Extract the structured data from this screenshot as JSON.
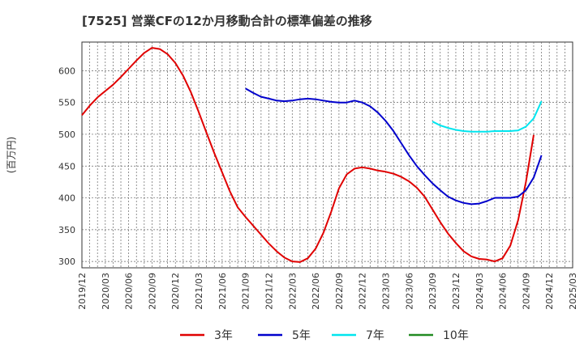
{
  "chart_data": {
    "type": "line",
    "title": "[7525]  営業CFの12か月移動合計の標準偏差の推移",
    "ylabel": "(百万円)",
    "xlabel": "",
    "ylim": [
      290,
      645
    ],
    "yticks": [
      300,
      350,
      400,
      450,
      500,
      550,
      600
    ],
    "xticks": [
      "2019/12",
      "2020/03",
      "2020/06",
      "2020/09",
      "2020/12",
      "2021/03",
      "2021/06",
      "2021/09",
      "2021/12",
      "2022/03",
      "2022/06",
      "2022/09",
      "2022/12",
      "2023/03",
      "2023/06",
      "2023/09",
      "2023/12",
      "2024/03",
      "2024/06",
      "2024/09",
      "2024/12",
      "2025/03"
    ],
    "grid": true,
    "legend_position": "bottom",
    "series": [
      {
        "name": "3年",
        "color": "#e00000",
        "points": [
          [
            "2019/12",
            530
          ],
          [
            "2020/01",
            545
          ],
          [
            "2020/02",
            558
          ],
          [
            "2020/03",
            568
          ],
          [
            "2020/04",
            578
          ],
          [
            "2020/05",
            590
          ],
          [
            "2020/06",
            603
          ],
          [
            "2020/07",
            616
          ],
          [
            "2020/08",
            628
          ],
          [
            "2020/09",
            636
          ],
          [
            "2020/10",
            634
          ],
          [
            "2020/11",
            626
          ],
          [
            "2020/12",
            612
          ],
          [
            "2021/01",
            592
          ],
          [
            "2021/02",
            566
          ],
          [
            "2021/03",
            535
          ],
          [
            "2021/04",
            502
          ],
          [
            "2021/05",
            470
          ],
          [
            "2021/06",
            440
          ],
          [
            "2021/07",
            410
          ],
          [
            "2021/08",
            385
          ],
          [
            "2021/09",
            370
          ],
          [
            "2021/10",
            356
          ],
          [
            "2021/11",
            342
          ],
          [
            "2021/12",
            328
          ],
          [
            "2022/01",
            316
          ],
          [
            "2022/02",
            306
          ],
          [
            "2022/03",
            300
          ],
          [
            "2022/04",
            299
          ],
          [
            "2022/05",
            305
          ],
          [
            "2022/06",
            320
          ],
          [
            "2022/07",
            345
          ],
          [
            "2022/08",
            378
          ],
          [
            "2022/09",
            415
          ],
          [
            "2022/10",
            437
          ],
          [
            "2022/11",
            446
          ],
          [
            "2022/12",
            448
          ],
          [
            "2023/01",
            446
          ],
          [
            "2023/02",
            443
          ],
          [
            "2023/03",
            441
          ],
          [
            "2023/04",
            438
          ],
          [
            "2023/05",
            433
          ],
          [
            "2023/06",
            426
          ],
          [
            "2023/07",
            416
          ],
          [
            "2023/08",
            402
          ],
          [
            "2023/09",
            382
          ],
          [
            "2023/10",
            362
          ],
          [
            "2023/11",
            344
          ],
          [
            "2023/12",
            329
          ],
          [
            "2024/01",
            316
          ],
          [
            "2024/02",
            308
          ],
          [
            "2024/03",
            304
          ],
          [
            "2024/04",
            303
          ],
          [
            "2024/05",
            300
          ],
          [
            "2024/06",
            305
          ],
          [
            "2024/07",
            325
          ],
          [
            "2024/08",
            365
          ],
          [
            "2024/09",
            425
          ],
          [
            "2024/10",
            499
          ]
        ]
      },
      {
        "name": "5年",
        "color": "#0000cc",
        "points": [
          [
            "2021/09",
            572
          ],
          [
            "2021/10",
            565
          ],
          [
            "2021/11",
            559
          ],
          [
            "2021/12",
            556
          ],
          [
            "2022/01",
            553
          ],
          [
            "2022/02",
            552
          ],
          [
            "2022/03",
            553
          ],
          [
            "2022/04",
            555
          ],
          [
            "2022/05",
            556
          ],
          [
            "2022/06",
            555
          ],
          [
            "2022/07",
            553
          ],
          [
            "2022/08",
            551
          ],
          [
            "2022/09",
            550
          ],
          [
            "2022/10",
            550
          ],
          [
            "2022/11",
            553
          ],
          [
            "2022/12",
            550
          ],
          [
            "2023/01",
            544
          ],
          [
            "2023/02",
            534
          ],
          [
            "2023/03",
            521
          ],
          [
            "2023/04",
            505
          ],
          [
            "2023/05",
            486
          ],
          [
            "2023/06",
            467
          ],
          [
            "2023/07",
            450
          ],
          [
            "2023/08",
            436
          ],
          [
            "2023/09",
            423
          ],
          [
            "2023/10",
            412
          ],
          [
            "2023/11",
            402
          ],
          [
            "2023/12",
            396
          ],
          [
            "2024/01",
            392
          ],
          [
            "2024/02",
            390
          ],
          [
            "2024/03",
            391
          ],
          [
            "2024/04",
            395
          ],
          [
            "2024/05",
            400
          ],
          [
            "2024/06",
            400
          ],
          [
            "2024/07",
            400
          ],
          [
            "2024/08",
            402
          ],
          [
            "2024/09",
            412
          ],
          [
            "2024/10",
            432
          ],
          [
            "2024/11",
            467
          ]
        ]
      },
      {
        "name": "7年",
        "color": "#00e5ee",
        "points": [
          [
            "2023/09",
            520
          ],
          [
            "2023/10",
            514
          ],
          [
            "2023/11",
            510
          ],
          [
            "2023/12",
            507
          ],
          [
            "2024/01",
            505
          ],
          [
            "2024/02",
            504
          ],
          [
            "2024/03",
            504
          ],
          [
            "2024/04",
            504
          ],
          [
            "2024/05",
            505
          ],
          [
            "2024/06",
            505
          ],
          [
            "2024/07",
            505
          ],
          [
            "2024/08",
            506
          ],
          [
            "2024/09",
            512
          ],
          [
            "2024/10",
            525
          ],
          [
            "2024/11",
            552
          ]
        ]
      },
      {
        "name": "10年",
        "color": "#228b22",
        "points": []
      }
    ]
  }
}
